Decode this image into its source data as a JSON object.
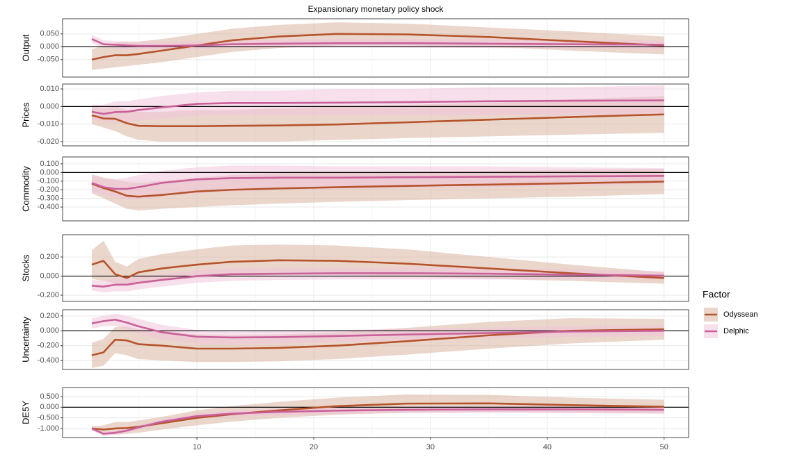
{
  "chart_data": [
    {
      "type": "line",
      "title": "Expansionary monetary policy shock",
      "legend_title": "Factor",
      "ylabel": "Output",
      "x": [
        1,
        2,
        3,
        4,
        5,
        7,
        10,
        13,
        17,
        22,
        28,
        35,
        42,
        50
      ],
      "ylim": [
        -0.118,
        0.109
      ],
      "yticks": [
        {
          "value": 0.05,
          "label": "0.050"
        },
        {
          "value": 0,
          "label": "0.000"
        },
        {
          "value": -0.05,
          "label": "-0.050"
        }
      ],
      "series": [
        {
          "name": "Odyssean",
          "color": "#b5532a",
          "band_color": "#d9b5a0",
          "values": [
            -0.05,
            -0.04,
            -0.033,
            -0.033,
            -0.028,
            -0.015,
            0.005,
            0.025,
            0.04,
            0.05,
            0.048,
            0.038,
            0.022,
            0.005
          ],
          "lower": [
            -0.09,
            -0.085,
            -0.08,
            -0.075,
            -0.07,
            -0.06,
            -0.04,
            -0.02,
            -0.005,
            0.005,
            0.005,
            0,
            -0.015,
            -0.03
          ],
          "upper": [
            -0.01,
            0.005,
            0.015,
            0.02,
            0.02,
            0.03,
            0.05,
            0.07,
            0.085,
            0.095,
            0.09,
            0.075,
            0.06,
            0.04
          ]
        },
        {
          "name": "Delphic",
          "color": "#c9609a",
          "band_color": "#f0c4dc",
          "values": [
            0.03,
            0.01,
            0.008,
            0.005,
            0.003,
            0.003,
            0.005,
            0.01,
            0.012,
            0.014,
            0.014,
            0.012,
            0.01,
            0.008
          ],
          "lower": [
            0.015,
            -0.005,
            -0.008,
            -0.01,
            -0.01,
            -0.01,
            -0.008,
            -0.005,
            -0.003,
            -0.002,
            -0.003,
            -0.005,
            -0.007,
            -0.01
          ],
          "upper": [
            0.045,
            0.025,
            0.022,
            0.02,
            0.018,
            0.018,
            0.02,
            0.025,
            0.028,
            0.03,
            0.03,
            0.03,
            0.028,
            0.025
          ]
        }
      ]
    },
    {
      "type": "line",
      "ylabel": "Prices",
      "x": [
        1,
        2,
        3,
        4,
        5,
        7,
        10,
        13,
        17,
        22,
        28,
        35,
        42,
        50
      ],
      "ylim": [
        -0.0224,
        0.0128
      ],
      "yticks": [
        {
          "value": 0.01,
          "label": "0.010"
        },
        {
          "value": 0,
          "label": "0.000"
        },
        {
          "value": -0.01,
          "label": "-0.010"
        },
        {
          "value": -0.02,
          "label": "-0.020"
        }
      ],
      "series": [
        {
          "name": "Odyssean",
          "color": "#b5532a",
          "band_color": "#d9b5a0",
          "values": [
            -0.005,
            -0.0068,
            -0.007,
            -0.0095,
            -0.011,
            -0.0112,
            -0.0112,
            -0.011,
            -0.0108,
            -0.0102,
            -0.009,
            -0.0075,
            -0.006,
            -0.0045
          ],
          "lower": [
            -0.01,
            -0.012,
            -0.014,
            -0.017,
            -0.019,
            -0.02,
            -0.02,
            -0.02,
            -0.02,
            -0.019,
            -0.018,
            -0.017,
            -0.016,
            -0.015
          ],
          "upper": [
            0,
            -0.001,
            0,
            -0.002,
            -0.003,
            -0.003,
            -0.002,
            -0.002,
            -0.001,
            0,
            0.001,
            0.002,
            0.004,
            0.006
          ]
        },
        {
          "name": "Delphic",
          "color": "#c9609a",
          "band_color": "#f0c4dc",
          "values": [
            -0.003,
            -0.0042,
            -0.0032,
            -0.003,
            -0.002,
            -0.0005,
            0.0015,
            0.002,
            0.002,
            0.0022,
            0.0025,
            0.003,
            0.0033,
            0.0035
          ],
          "lower": [
            -0.007,
            -0.009,
            -0.009,
            -0.009,
            -0.008,
            -0.007,
            -0.005,
            -0.005,
            -0.005,
            -0.005,
            -0.005,
            -0.005,
            -0.005,
            -0.005
          ],
          "upper": [
            0.001,
            0.001,
            0.003,
            0.003,
            0.004,
            0.006,
            0.008,
            0.009,
            0.009,
            0.01,
            0.01,
            0.011,
            0.011,
            0.012
          ]
        }
      ]
    },
    {
      "type": "line",
      "ylabel": "Commodity",
      "x": [
        1,
        2,
        3,
        4,
        5,
        7,
        10,
        13,
        17,
        22,
        28,
        35,
        42,
        50
      ],
      "ylim": [
        -0.56,
        0.18
      ],
      "yticks": [
        {
          "value": 0.1,
          "label": "0.100"
        },
        {
          "value": 0,
          "label": "0.000"
        },
        {
          "value": -0.1,
          "label": "-0.100"
        },
        {
          "value": -0.2,
          "label": "-0.200"
        },
        {
          "value": -0.3,
          "label": "-0.300"
        },
        {
          "value": -0.4,
          "label": "-0.400"
        }
      ],
      "series": [
        {
          "name": "Odyssean",
          "color": "#b5532a",
          "band_color": "#d9b5a0",
          "values": [
            -0.13,
            -0.18,
            -0.22,
            -0.27,
            -0.28,
            -0.26,
            -0.22,
            -0.2,
            -0.185,
            -0.17,
            -0.155,
            -0.14,
            -0.125,
            -0.105
          ],
          "lower": [
            -0.24,
            -0.3,
            -0.36,
            -0.42,
            -0.44,
            -0.42,
            -0.4,
            -0.38,
            -0.36,
            -0.34,
            -0.32,
            -0.3,
            -0.28,
            -0.25
          ],
          "upper": [
            -0.02,
            -0.06,
            -0.08,
            -0.11,
            -0.12,
            -0.1,
            -0.06,
            -0.03,
            -0.01,
            0,
            0.01,
            0.02,
            0.03,
            0.04
          ]
        },
        {
          "name": "Delphic",
          "color": "#c9609a",
          "band_color": "#f0c4dc",
          "values": [
            -0.12,
            -0.17,
            -0.19,
            -0.19,
            -0.17,
            -0.12,
            -0.08,
            -0.065,
            -0.06,
            -0.06,
            -0.055,
            -0.05,
            -0.045,
            -0.04
          ],
          "lower": [
            -0.22,
            -0.26,
            -0.29,
            -0.31,
            -0.31,
            -0.28,
            -0.24,
            -0.22,
            -0.2,
            -0.19,
            -0.18,
            -0.17,
            -0.15,
            -0.13
          ],
          "upper": [
            -0.03,
            -0.08,
            -0.08,
            -0.06,
            -0.03,
            0.02,
            0.06,
            0.08,
            0.08,
            0.07,
            0.07,
            0.07,
            0.06,
            0.05
          ]
        }
      ]
    },
    {
      "type": "line",
      "ylabel": "Stocks",
      "x": [
        1,
        2,
        3,
        4,
        5,
        7,
        10,
        13,
        17,
        22,
        28,
        35,
        42,
        50
      ],
      "ylim": [
        -0.265,
        0.433
      ],
      "yticks": [
        {
          "value": 0.2,
          "label": "0.200"
        },
        {
          "value": 0,
          "label": "0.000"
        },
        {
          "value": -0.2,
          "label": "-0.200"
        }
      ],
      "series": [
        {
          "name": "Odyssean",
          "color": "#b5532a",
          "band_color": "#d9b5a0",
          "values": [
            0.12,
            0.16,
            0.02,
            -0.02,
            0.04,
            0.08,
            0.12,
            0.15,
            0.165,
            0.16,
            0.13,
            0.08,
            0.03,
            -0.02
          ],
          "lower": [
            -0.03,
            -0.05,
            -0.08,
            -0.1,
            -0.08,
            -0.05,
            -0.02,
            0,
            0.01,
            0.01,
            0,
            -0.03,
            -0.05,
            -0.08
          ],
          "upper": [
            0.27,
            0.37,
            0.15,
            0.1,
            0.18,
            0.23,
            0.28,
            0.32,
            0.33,
            0.32,
            0.28,
            0.2,
            0.12,
            0.04
          ]
        },
        {
          "name": "Delphic",
          "color": "#c9609a",
          "band_color": "#f0c4dc",
          "values": [
            -0.1,
            -0.11,
            -0.09,
            -0.09,
            -0.07,
            -0.04,
            0,
            0.02,
            0.025,
            0.03,
            0.03,
            0.025,
            0.015,
            0.005
          ],
          "lower": [
            -0.15,
            -0.17,
            -0.16,
            -0.16,
            -0.14,
            -0.11,
            -0.07,
            -0.05,
            -0.04,
            -0.035,
            -0.035,
            -0.035,
            -0.035,
            -0.035
          ],
          "upper": [
            -0.04,
            -0.05,
            -0.02,
            -0.01,
            0,
            0.02,
            0.06,
            0.08,
            0.09,
            0.09,
            0.09,
            0.08,
            0.07,
            0.05
          ]
        }
      ]
    },
    {
      "type": "line",
      "ylabel": "Uncertainty",
      "x": [
        1,
        2,
        3,
        4,
        5,
        7,
        10,
        13,
        17,
        22,
        28,
        35,
        42,
        50
      ],
      "ylim": [
        -0.52,
        0.283
      ],
      "yticks": [
        {
          "value": 0.2,
          "label": "0.200"
        },
        {
          "value": 0,
          "label": "0.000"
        },
        {
          "value": -0.2,
          "label": "-0.200"
        },
        {
          "value": -0.4,
          "label": "-0.400"
        }
      ],
      "series": [
        {
          "name": "Odyssean",
          "color": "#b5532a",
          "band_color": "#d9b5a0",
          "values": [
            -0.33,
            -0.29,
            -0.12,
            -0.13,
            -0.18,
            -0.2,
            -0.24,
            -0.24,
            -0.23,
            -0.2,
            -0.14,
            -0.06,
            0,
            0.02
          ],
          "lower": [
            -0.5,
            -0.47,
            -0.3,
            -0.33,
            -0.38,
            -0.4,
            -0.42,
            -0.42,
            -0.41,
            -0.38,
            -0.32,
            -0.24,
            -0.17,
            -0.12
          ],
          "upper": [
            -0.16,
            -0.11,
            0.05,
            0.06,
            0.02,
            0,
            -0.05,
            -0.06,
            -0.05,
            -0.02,
            0.04,
            0.12,
            0.17,
            0.16
          ]
        },
        {
          "name": "Delphic",
          "color": "#c9609a",
          "band_color": "#f0c4dc",
          "values": [
            0.1,
            0.13,
            0.15,
            0.11,
            0.06,
            -0.02,
            -0.08,
            -0.09,
            -0.085,
            -0.07,
            -0.05,
            -0.03,
            -0.01,
            0
          ],
          "lower": [
            0.03,
            0.06,
            0.07,
            0.02,
            -0.04,
            -0.12,
            -0.17,
            -0.18,
            -0.17,
            -0.15,
            -0.13,
            -0.1,
            -0.08,
            -0.07
          ],
          "upper": [
            0.17,
            0.2,
            0.23,
            0.2,
            0.16,
            0.08,
            0.01,
            -0.01,
            0,
            0.01,
            0.03,
            0.04,
            0.06,
            0.07
          ]
        }
      ]
    },
    {
      "type": "line",
      "ylabel": "DE5Y",
      "x": [
        1,
        2,
        3,
        4,
        5,
        7,
        10,
        13,
        17,
        22,
        28,
        35,
        42,
        50
      ],
      "xlim": [
        -1.5,
        52.1
      ],
      "xticks": [
        10,
        20,
        30,
        40,
        50
      ],
      "ylim": [
        -1.425,
        0.925
      ],
      "yticks": [
        {
          "value": 0.5,
          "label": "0.500"
        },
        {
          "value": 0,
          "label": "0.000"
        },
        {
          "value": -0.5,
          "label": "-0.500"
        },
        {
          "value": -1,
          "label": "-1.000"
        }
      ],
      "series": [
        {
          "name": "Odyssean",
          "color": "#b5532a",
          "band_color": "#d9b5a0",
          "values": [
            -1.0,
            -1.05,
            -1.0,
            -0.98,
            -0.92,
            -0.75,
            -0.5,
            -0.33,
            -0.15,
            0.05,
            0.17,
            0.18,
            0.1,
            0.02
          ],
          "lower": [
            -1.1,
            -1.25,
            -1.3,
            -1.25,
            -1.2,
            -1.05,
            -0.85,
            -0.68,
            -0.5,
            -0.35,
            -0.25,
            -0.22,
            -0.25,
            -0.3
          ],
          "upper": [
            -0.9,
            -0.85,
            -0.7,
            -0.7,
            -0.62,
            -0.45,
            -0.15,
            0.05,
            0.25,
            0.45,
            0.6,
            0.58,
            0.45,
            0.35
          ]
        },
        {
          "name": "Delphic",
          "color": "#c9609a",
          "band_color": "#f0c4dc",
          "values": [
            -1.0,
            -1.25,
            -1.2,
            -1.1,
            -0.95,
            -0.68,
            -0.42,
            -0.3,
            -0.22,
            -0.16,
            -0.12,
            -0.1,
            -0.1,
            -0.12
          ],
          "lower": [
            -1.08,
            -1.35,
            -1.3,
            -1.2,
            -1.05,
            -0.8,
            -0.55,
            -0.45,
            -0.38,
            -0.32,
            -0.28,
            -0.27,
            -0.28,
            -0.3
          ],
          "upper": [
            -0.92,
            -1.15,
            -1.1,
            -1.0,
            -0.85,
            -0.56,
            -0.3,
            -0.15,
            -0.06,
            0,
            0.04,
            0.07,
            0.08,
            0.06
          ]
        }
      ]
    }
  ]
}
